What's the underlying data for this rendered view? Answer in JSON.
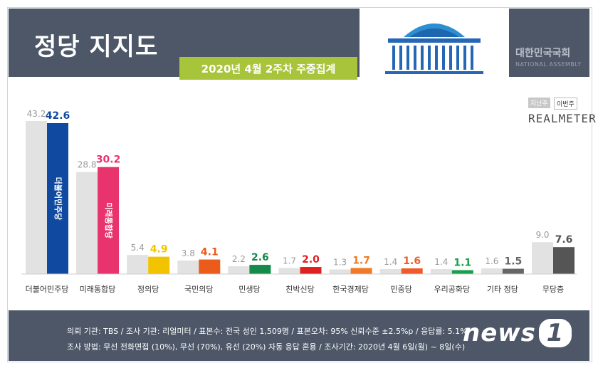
{
  "header": {
    "title": "정당 지지도",
    "subtitle": "2020년 4월 2주차 주중집계",
    "assembly_name": "대한민국국회",
    "assembly_en": "NATIONAL ASSEMBLY"
  },
  "legend": {
    "prev": "지난주",
    "curr": "이번주"
  },
  "brand": "REALMETER",
  "footer": {
    "line1": "의뢰 기관: TBS / 조사 기관: 리얼미터 / 표본수: 전국 성인 1,509명 / 표본오차: 95% 신뢰수준 ±2.5%p / 응답률: 5.1%",
    "line2": "조사 방법: 무선 전화면접 (10%), 무선 (70%), 유선 (20%) 자동 응답 혼용 / 조사기간: 2020년 4월 6일(월) ~ 8일(수)"
  },
  "watermark": {
    "text": "news",
    "one": "1"
  },
  "colors": {
    "prev": "#e2e2e2",
    "header": "#4d5768",
    "accent": "#a8c43a"
  },
  "chart_data": {
    "type": "bar",
    "categories": [
      "더불어민주당",
      "미래통합당",
      "정의당",
      "국민의당",
      "민생당",
      "친박신당",
      "한국경제당",
      "민중당",
      "우리공화당",
      "기타 정당",
      "무당층"
    ],
    "series": [
      {
        "name": "지난주",
        "values": [
          43.2,
          28.8,
          5.4,
          3.8,
          2.2,
          1.7,
          1.3,
          1.4,
          1.4,
          1.6,
          9.0
        ]
      },
      {
        "name": "이번주",
        "values": [
          42.6,
          30.2,
          4.9,
          4.1,
          2.6,
          2.0,
          1.7,
          1.6,
          1.1,
          1.5,
          7.6
        ]
      }
    ],
    "value_labels_prev": [
      "43.2",
      "28.8",
      "5.4",
      "3.8",
      "2.2",
      "1.7",
      "1.3",
      "1.4",
      "1.4",
      "1.6",
      "9.0"
    ],
    "value_labels_curr": [
      "42.6",
      "30.2",
      "4.9",
      "4.1",
      "2.6",
      "2.0",
      "1.7",
      "1.6",
      "1.1",
      "1.5",
      "7.6"
    ],
    "bar_colors": [
      "#0f4aa0",
      "#e8336d",
      "#f2c400",
      "#ea5b1c",
      "#138b4a",
      "#e02020",
      "#f07a25",
      "#ef5a2a",
      "#16a04a",
      "#666666",
      "#555555"
    ],
    "bar_texts": [
      "더불어민주당",
      "미래통합당",
      "",
      "",
      "",
      "",
      "",
      "",
      "",
      "",
      ""
    ],
    "ylim": [
      0,
      45
    ]
  }
}
